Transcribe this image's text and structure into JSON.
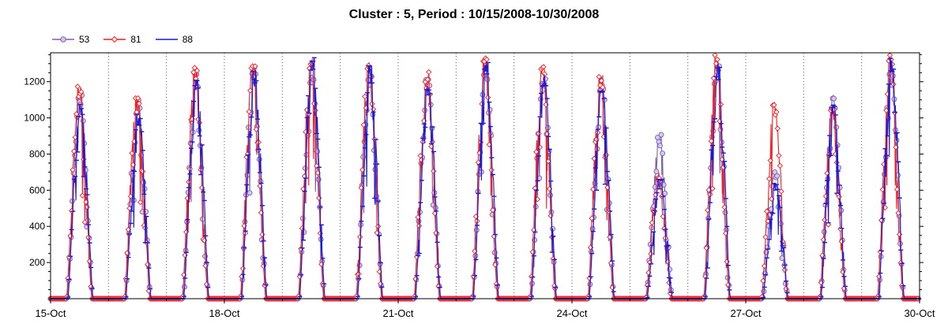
{
  "chart_data": {
    "type": "line",
    "title": "Cluster : 5, Period : 10/15/2008-10/30/2008",
    "xlabel": "",
    "ylabel": "",
    "x_tick_labels": [
      "15-Oct",
      "18-Oct",
      "21-Oct",
      "24-Oct",
      "27-Oct",
      "30-Oct"
    ],
    "x_tick_days": [
      0,
      3,
      6,
      9,
      12,
      15
    ],
    "xlim_days": [
      0,
      15
    ],
    "ylim": [
      0,
      1360
    ],
    "y_ticks": [
      200,
      400,
      600,
      800,
      1000,
      1200
    ],
    "grid": "vertical dotted lines at day boundaries",
    "legend_position": "top-left",
    "daily_peaks": [
      {
        "day": "15-Oct",
        "s53": 1130,
        "s81": 1175,
        "s88": 1090
      },
      {
        "day": "16-Oct",
        "s53": 1100,
        "s81": 1110,
        "s88": 1040
      },
      {
        "day": "17-Oct",
        "s53": 1260,
        "s81": 1280,
        "s88": 1250
      },
      {
        "day": "18-Oct",
        "s53": 1280,
        "s81": 1310,
        "s88": 1270
      },
      {
        "day": "19-Oct",
        "s53": 1240,
        "s81": 1330,
        "s88": 1340
      },
      {
        "day": "20-Oct",
        "s53": 1250,
        "s81": 1320,
        "s88": 1290
      },
      {
        "day": "21-Oct",
        "s53": 1220,
        "s81": 1260,
        "s88": 1200
      },
      {
        "day": "22-Oct",
        "s53": 1300,
        "s81": 1330,
        "s88": 1320
      },
      {
        "day": "23-Oct",
        "s53": 1250,
        "s81": 1300,
        "s88": 1260
      },
      {
        "day": "24-Oct",
        "s53": 1240,
        "s81": 1230,
        "s88": 1180
      },
      {
        "day": "25-Oct",
        "s53": 920,
        "s81": 700,
        "s88": 660
      },
      {
        "day": "26-Oct",
        "s53": 1300,
        "s81": 1350,
        "s88": 1310
      },
      {
        "day": "27-Oct",
        "s53": 710,
        "s81": 1090,
        "s88": 640
      },
      {
        "day": "28-Oct",
        "s53": 1130,
        "s81": 1050,
        "s88": 1080
      },
      {
        "day": "29-Oct",
        "s53": 1250,
        "s81": 1350,
        "s88": 1340
      }
    ],
    "series": [
      {
        "name": "53",
        "color": "#7b5fb0",
        "marker": "circle",
        "marker_fill": "#d6c8ee"
      },
      {
        "name": "81",
        "color": "#ff1a1a",
        "marker": "diamond",
        "marker_fill": "#ffffff"
      },
      {
        "name": "88",
        "color": "#1a1ad6",
        "marker": "dash",
        "marker_fill": "#1a1ad6"
      }
    ]
  }
}
